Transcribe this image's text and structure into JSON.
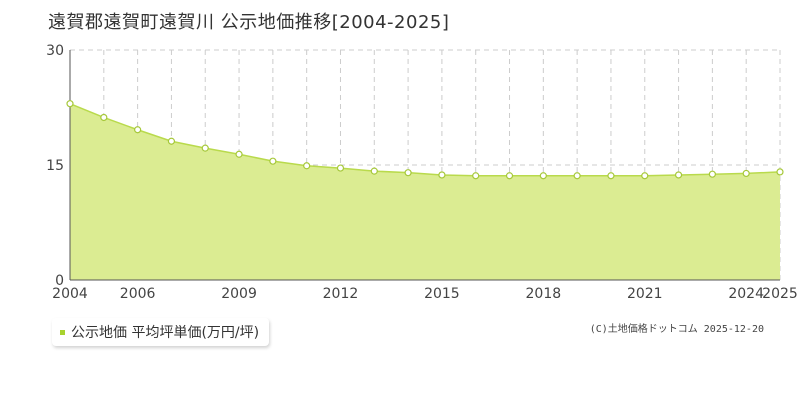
{
  "title": "遠賀郡遠賀町遠賀川 公示地価推移[2004-2025]",
  "legend_label": "公示地価 平均坪単価(万円/坪)",
  "copyright": "(C)土地価格ドットコム 2025-12-20",
  "colors": {
    "fill": "#dbec92",
    "line": "#b9da4c",
    "point_fill": "#ffffff",
    "point_stroke": "#a6c83a",
    "grid": "#cccccc",
    "axis": "#555555",
    "legend_swatch": "#a8d22e"
  },
  "chart_data": {
    "type": "area",
    "x": [
      2004,
      2005,
      2006,
      2007,
      2008,
      2009,
      2010,
      2011,
      2012,
      2013,
      2014,
      2015,
      2016,
      2017,
      2018,
      2019,
      2020,
      2021,
      2022,
      2023,
      2024,
      2025
    ],
    "series": [
      {
        "name": "公示地価 平均坪単価(万円/坪)",
        "values": [
          23.0,
          21.2,
          19.6,
          18.1,
          17.2,
          16.4,
          15.5,
          14.9,
          14.6,
          14.2,
          14.0,
          13.7,
          13.6,
          13.6,
          13.6,
          13.6,
          13.6,
          13.6,
          13.7,
          13.8,
          13.9,
          14.1
        ]
      }
    ],
    "x_tick_labels": [
      "2004",
      "2006",
      "2009",
      "2012",
      "2015",
      "2018",
      "2021",
      "2024",
      "2025"
    ],
    "y_tick_labels": [
      "0",
      "15",
      "30"
    ],
    "xlim": [
      2004,
      2025
    ],
    "ylim": [
      0,
      30
    ],
    "grid": true
  }
}
